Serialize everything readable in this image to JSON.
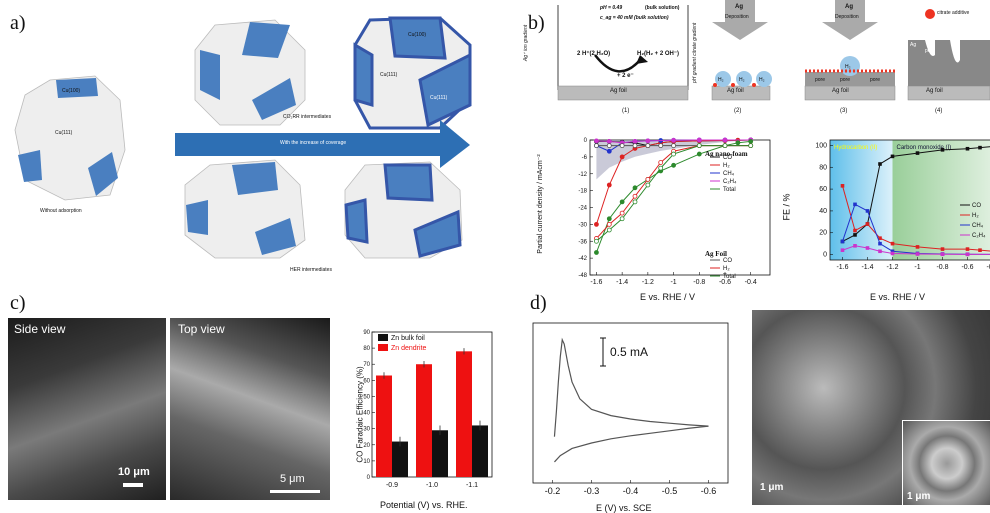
{
  "panel_a": {
    "label": "a)",
    "arrow_label": "With the increase of coverage",
    "co2_label": "CO₂RR intermediates",
    "her_label": "HER intermediates",
    "without_label": "Without adsorption",
    "face_100": "Cu(100)",
    "face_111": "Cu(111)",
    "colors": {
      "blue": "#4a7fc0",
      "dark_blue": "#3556a8",
      "face": "#eeeeee",
      "arrow": "#2d6fb4"
    }
  },
  "panel_b": {
    "label": "b)",
    "cond1": "pH = 0.49",
    "cond1b": "(bulk solution)",
    "cond2": "c_ag = 40 mM (bulk solution)",
    "left_grad": "Ag⁺ ion gradient",
    "right_grad": "pH gradient citrate gradient",
    "eq_left": "2 H⁺(2 H₂O)",
    "eq_right": "H₂(H₂ + 2 OH⁻)",
    "eq_mid": "+ 2 e⁻",
    "deposition": "Deposition",
    "ag": "Ag",
    "ag_foil": "Ag foil",
    "pore": "pore",
    "citrate": "citrate additive",
    "h2": "H₂",
    "steps": [
      "(1)",
      "(2)",
      "(3)",
      "(4)"
    ]
  },
  "panel_c": {
    "label": "c)",
    "side_view": "Side view",
    "top_view": "Top view",
    "scale1": "10 μm",
    "scale2": "5 μm"
  },
  "panel_d": {
    "label": "d)",
    "current_scale": "0.5 mA",
    "scale_sem1": "1 μm",
    "scale_sem2": "1 μm"
  },
  "chart_data": [
    {
      "type": "line",
      "id": "b-left",
      "xlabel": "E vs. RHE / V",
      "ylabel": "Partial current density / mAcm⁻²",
      "xlim": [
        -1.65,
        -0.25
      ],
      "ylim": [
        -48,
        0
      ],
      "xticks": [
        -1.6,
        -1.4,
        -1.2,
        -1.0,
        -0.8,
        -0.6,
        -0.4
      ],
      "yticks": [
        0,
        -6,
        -12,
        -18,
        -24,
        -30,
        -36,
        -42,
        -48
      ],
      "legend_groups": [
        "Ag nano-foam",
        "Ag Foil"
      ],
      "series": [
        {
          "name": "CO",
          "group": "Ag nano-foam",
          "color": "#111111",
          "x": [
            -1.6,
            -1.5,
            -1.4,
            -1.3,
            -1.2,
            -1.1,
            -1.0,
            -0.8,
            -0.6,
            -0.5,
            -0.4
          ],
          "y": [
            -0.5,
            -0.5,
            -0.8,
            -1,
            -2,
            -1,
            -0.5,
            -0.3,
            -0.2,
            -0.1,
            0
          ]
        },
        {
          "name": "H₂",
          "group": "Ag nano-foam",
          "color": "#dd2222",
          "x": [
            -1.6,
            -1.5,
            -1.4,
            -1.3,
            -1.2,
            -1.1,
            -1.0,
            -0.8,
            -0.6,
            -0.5,
            -0.4
          ],
          "y": [
            -30,
            -16,
            -6,
            -3,
            -2,
            -1,
            -0.5,
            -0.3,
            -0.2,
            -0.1,
            0
          ]
        },
        {
          "name": "CH₄",
          "group": "Ag nano-foam",
          "color": "#2233cc",
          "x": [
            -1.6,
            -1.5,
            -1.4,
            -1.3,
            -1.2,
            -1.1,
            -1.0,
            -0.8,
            -0.6,
            -0.4
          ],
          "y": [
            -2,
            -4,
            -1,
            -0.5,
            -0.3,
            -0.2,
            -0.1,
            0,
            0,
            0
          ]
        },
        {
          "name": "C₂H₄",
          "group": "Ag nano-foam",
          "color": "#cc33cc",
          "x": [
            -1.6,
            -1.5,
            -1.4,
            -1.3,
            -1.2,
            -1.0,
            -0.8,
            -0.6,
            -0.4
          ],
          "y": [
            -0.3,
            -0.5,
            -1,
            -0.5,
            -0.3,
            -0.1,
            0,
            0,
            0
          ]
        },
        {
          "name": "Total",
          "group": "Ag nano-foam",
          "color": "#2d8a2d",
          "x": [
            -1.6,
            -1.5,
            -1.4,
            -1.3,
            -1.2,
            -1.1,
            -1.0,
            -0.8,
            -0.6,
            -0.5,
            -0.4
          ],
          "y": [
            -40,
            -28,
            -22,
            -17,
            -14,
            -11,
            -9,
            -5,
            -2,
            -1,
            -0.5
          ]
        },
        {
          "name": "CO",
          "group": "Ag Foil",
          "color": "#555555",
          "x": [
            -1.6,
            -1.5,
            -1.4,
            -1.3,
            -1.2,
            -1.1,
            -1.0,
            -0.8,
            -0.6,
            -0.4
          ],
          "y": [
            -2,
            -2,
            -2,
            -2,
            -2,
            -2,
            -2,
            -2,
            -2,
            -2
          ]
        },
        {
          "name": "H₂",
          "group": "Ag Foil",
          "color": "#dd2222",
          "x": [
            -1.6,
            -1.5,
            -1.4,
            -1.3,
            -1.2,
            -1.1,
            -1.0,
            -0.8,
            -0.6,
            -0.4
          ],
          "y": [
            -35,
            -30,
            -26,
            -20,
            -14,
            -8,
            -4,
            -2,
            -2,
            -2
          ]
        },
        {
          "name": "Total",
          "group": "Ag Foil",
          "color": "#2d8a2d",
          "x": [
            -1.6,
            -1.5,
            -1.4,
            -1.3,
            -1.2,
            -1.1,
            -1.0,
            -0.8,
            -0.6,
            -0.4
          ],
          "y": [
            -36,
            -32,
            -28,
            -22,
            -16,
            -10,
            -5,
            -2,
            -2,
            -2
          ]
        }
      ]
    },
    {
      "type": "line",
      "id": "b-right",
      "xlabel": "E vs. RHE / V",
      "ylabel": "FE / %",
      "xlim": [
        -1.7,
        -0.3
      ],
      "ylim": [
        -5,
        105
      ],
      "xticks": [
        -1.6,
        -1.4,
        -1.2,
        -1.0,
        -0.8,
        -0.6,
        -0.4
      ],
      "yticks": [
        0,
        20,
        40,
        60,
        80,
        100
      ],
      "regions": [
        {
          "label": "Hydrocarbon (II)",
          "from": -1.7,
          "to": -1.2,
          "color": "#4db8e8"
        },
        {
          "label": "Carbon monoxide (I)",
          "from": -1.2,
          "to": -0.3,
          "color": "#8ec98e"
        }
      ],
      "series": [
        {
          "name": "CO",
          "color": "#111111",
          "x": [
            -1.6,
            -1.5,
            -1.4,
            -1.3,
            -1.2,
            -1.0,
            -0.8,
            -0.6,
            -0.5,
            -0.4
          ],
          "y": [
            12,
            18,
            28,
            83,
            90,
            93,
            96,
            97,
            98,
            99
          ]
        },
        {
          "name": "H₂",
          "color": "#dd2222",
          "x": [
            -1.6,
            -1.5,
            -1.4,
            -1.3,
            -1.2,
            -1.0,
            -0.8,
            -0.6,
            -0.5,
            -0.4
          ],
          "y": [
            63,
            22,
            28,
            15,
            10,
            7,
            5,
            5,
            4,
            3
          ]
        },
        {
          "name": "CH₄",
          "color": "#2233cc",
          "x": [
            -1.6,
            -1.5,
            -1.4,
            -1.3,
            -1.2,
            -1.0,
            -0.8,
            -0.6,
            -0.4
          ],
          "y": [
            12,
            46,
            40,
            10,
            3,
            1,
            0.5,
            0.3,
            0.2
          ]
        },
        {
          "name": "C₂H₄",
          "color": "#cc33cc",
          "x": [
            -1.6,
            -1.5,
            -1.4,
            -1.3,
            -1.2,
            -1.0,
            -0.8,
            -0.6,
            -0.4
          ],
          "y": [
            4,
            8,
            6,
            3,
            1,
            0.5,
            0.3,
            0.2,
            0.1
          ]
        }
      ]
    },
    {
      "type": "bar",
      "id": "c-bar",
      "xlabel": "Potential (V)  vs. RHE.",
      "ylabel": "CO Faradaic Efficiency (%)",
      "categories": [
        "-0.9",
        "-1.0",
        "-1.1"
      ],
      "ylim": [
        0,
        90
      ],
      "yticks": [
        0,
        10,
        20,
        30,
        40,
        50,
        60,
        70,
        80,
        90
      ],
      "series": [
        {
          "name": "Zn bulk foil",
          "color": "#111111",
          "values": [
            22,
            29,
            32
          ]
        },
        {
          "name": "Zn dendrite",
          "color": "#ee1111",
          "values": [
            63,
            70,
            78
          ]
        }
      ]
    },
    {
      "type": "line",
      "id": "d-cv",
      "xlabel": "E (V) vs. SCE",
      "xlim": [
        -0.15,
        -0.65
      ],
      "xticks": [
        -0.2,
        -0.3,
        -0.4,
        -0.5,
        -0.6
      ],
      "series": [
        {
          "name": "forward",
          "color": "#555555",
          "x": [
            -0.205,
            -0.21,
            -0.215,
            -0.22,
            -0.225,
            -0.23,
            -0.24,
            -0.25,
            -0.27,
            -0.3,
            -0.35,
            -0.4,
            -0.45,
            -0.5,
            -0.55,
            -0.6
          ],
          "y": [
            0.3,
            0.9,
            1.6,
            2.2,
            2.6,
            2.5,
            2.0,
            1.6,
            1.2,
            0.95,
            0.8,
            0.72,
            0.66,
            0.62,
            0.58,
            0.55
          ]
        },
        {
          "name": "reverse",
          "color": "#555555",
          "x": [
            -0.6,
            -0.55,
            -0.5,
            -0.45,
            -0.4,
            -0.35,
            -0.3,
            -0.25,
            -0.22,
            -0.205
          ],
          "y": [
            0.55,
            0.5,
            0.44,
            0.38,
            0.32,
            0.25,
            0.15,
            0.02,
            -0.15,
            -0.3
          ]
        }
      ]
    }
  ]
}
